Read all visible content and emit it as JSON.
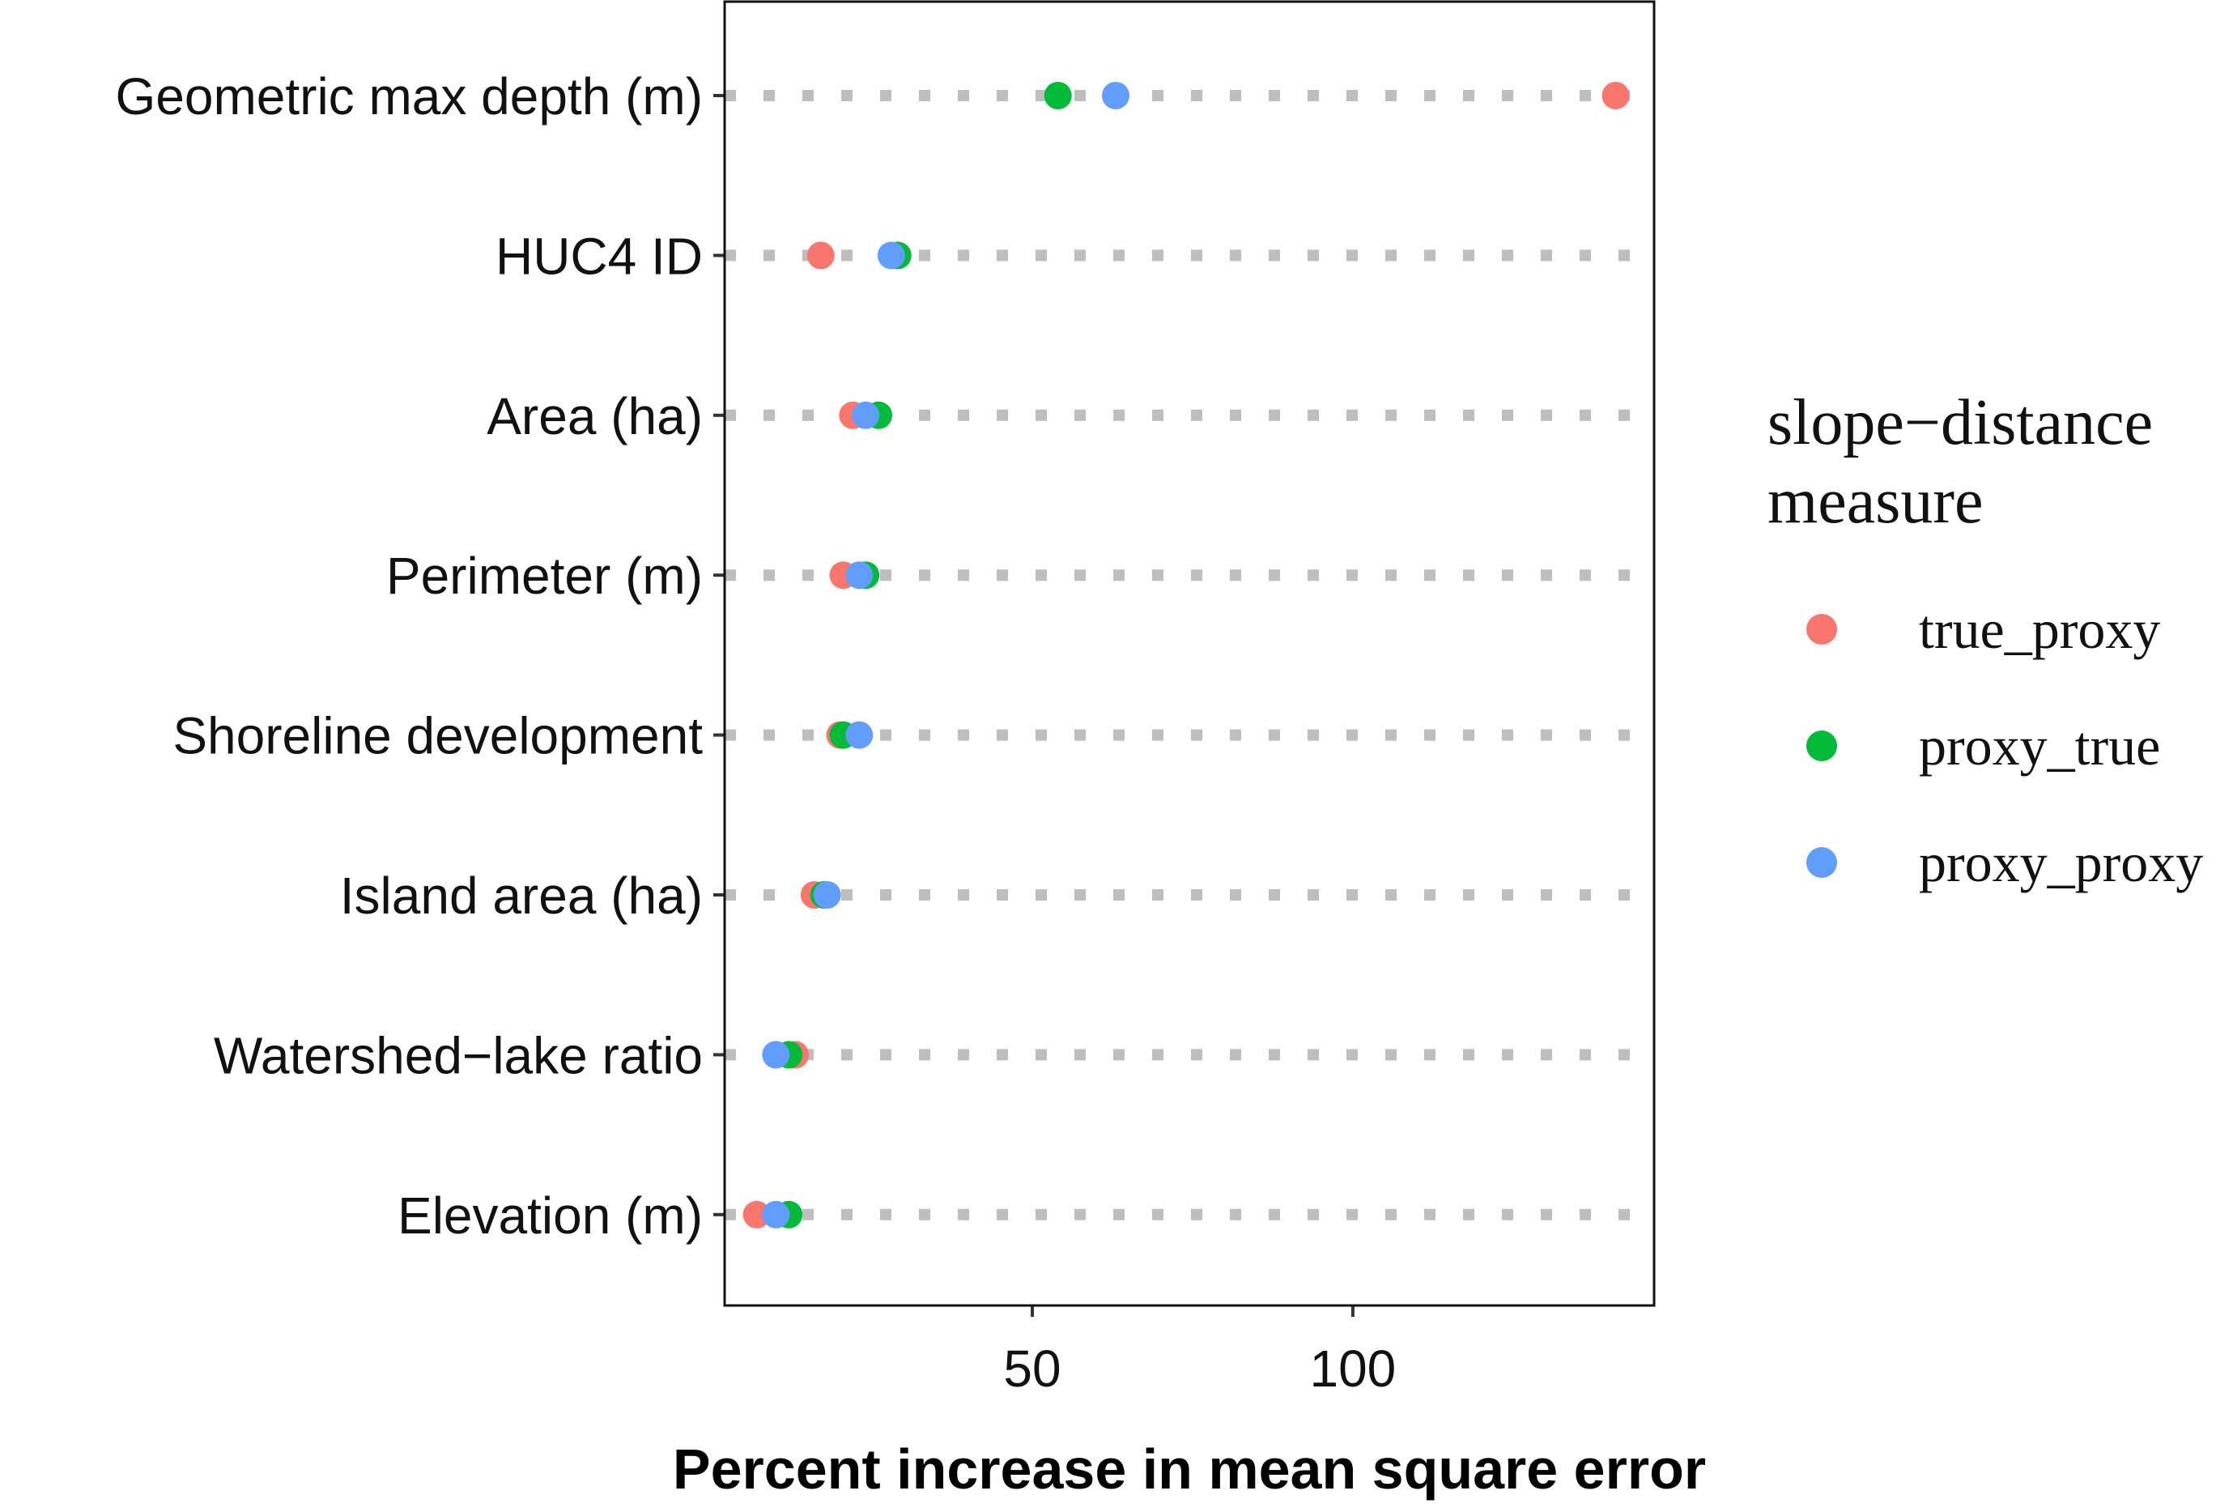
{
  "chart_data": {
    "type": "scatter",
    "orientation": "dot-plot (horizontal, categorical y)",
    "xlabel": "Percent increase in mean square error",
    "ylabel": "",
    "categories": [
      "Geometric max depth (m)",
      "HUC4 ID",
      "Area (ha)",
      "Perimeter (m)",
      "Shoreline development",
      "Island area (ha)",
      "Watershed−lake ratio",
      "Elevation (m)"
    ],
    "xlim": [
      2,
      147
    ],
    "xticks": [
      50,
      100
    ],
    "xtick_labels": [
      "50",
      "100"
    ],
    "grid": "dotted horizontal guide lines",
    "legend": {
      "title_lines": [
        "slope−distance",
        "measure"
      ],
      "placement": "right"
    },
    "series": [
      {
        "name": "true_proxy",
        "color": "#F8766D",
        "values": [
          141,
          17,
          22,
          20.5,
          20,
          16,
          13,
          7
        ]
      },
      {
        "name": "proxy_true",
        "color": "#00BA38",
        "values": [
          54,
          29,
          26,
          24,
          20.5,
          17.5,
          12,
          12
        ]
      },
      {
        "name": "proxy_proxy",
        "color": "#619CFF",
        "values": [
          63,
          28,
          24,
          23,
          23,
          18,
          10,
          10
        ]
      }
    ]
  }
}
